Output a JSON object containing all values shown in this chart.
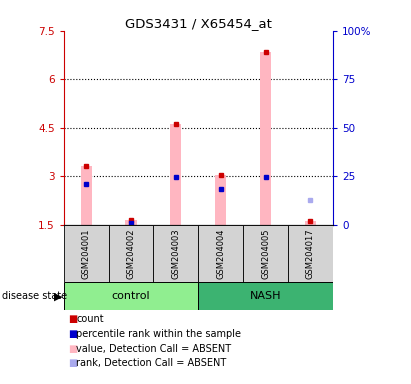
{
  "title": "GDS3431 / X65454_at",
  "samples": [
    "GSM204001",
    "GSM204002",
    "GSM204003",
    "GSM204004",
    "GSM204005",
    "GSM204017"
  ],
  "group_colors": {
    "control": "#90EE90",
    "NASH": "#3CB371"
  },
  "left_ylim": [
    1.5,
    7.5
  ],
  "left_yticks": [
    1.5,
    3.0,
    4.5,
    6.0,
    7.5
  ],
  "left_ytick_labels": [
    "1.5",
    "3",
    "4.5",
    "6",
    "7.5"
  ],
  "right_ylim": [
    0,
    100
  ],
  "right_yticks": [
    0,
    25,
    50,
    75,
    100
  ],
  "right_ytick_labels": [
    "0",
    "25",
    "50",
    "75",
    "100%"
  ],
  "left_axis_color": "#CC0000",
  "right_axis_color": "#0000CC",
  "bar_width": 0.25,
  "pink_bar_color": "#FFB6C1",
  "red_marker_color": "#CC0000",
  "blue_marker_color": "#0000CC",
  "light_blue_color": "#AAAAEE",
  "values_absent": [
    3.3,
    1.65,
    4.6,
    3.05,
    6.85,
    1.6
  ],
  "red_dots": [
    3.3,
    1.65,
    4.6,
    3.05,
    6.85,
    1.6
  ],
  "blue_dots": [
    2.75,
    1.55,
    2.98,
    2.6,
    2.98,
    null
  ],
  "light_blue_dots": [
    null,
    null,
    null,
    null,
    null,
    2.25
  ],
  "dotted_grid_values": [
    3.0,
    4.5,
    6.0
  ],
  "legend_items": [
    {
      "label": "count",
      "color": "#CC0000"
    },
    {
      "label": "percentile rank within the sample",
      "color": "#0000CC"
    },
    {
      "label": "value, Detection Call = ABSENT",
      "color": "#FFB6C1"
    },
    {
      "label": "rank, Detection Call = ABSENT",
      "color": "#AAAAEE"
    }
  ]
}
